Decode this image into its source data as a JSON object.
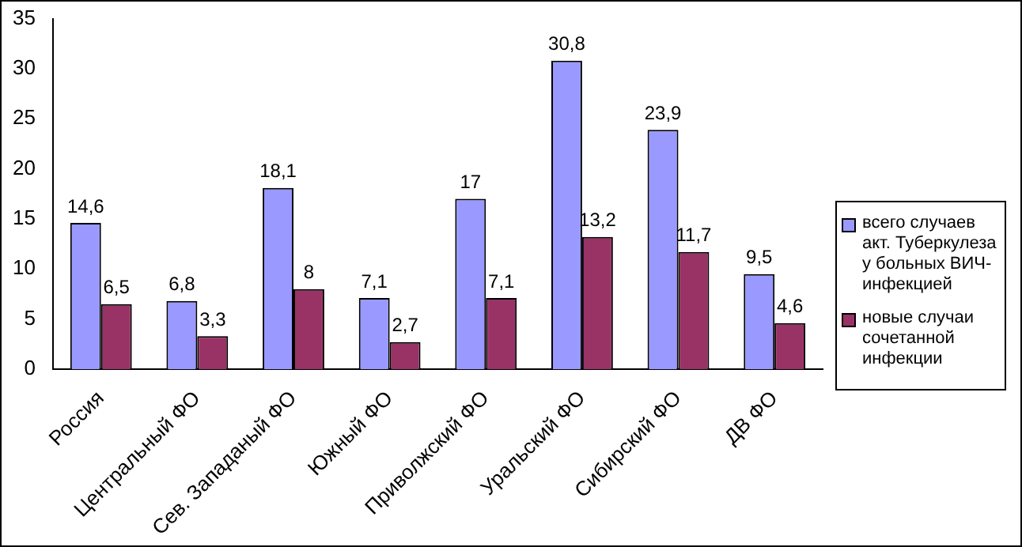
{
  "chart_data": {
    "type": "bar",
    "categories": [
      "Россия",
      "Центральный ФО",
      "Сев. Западаный ФО",
      "Южный ФО",
      "Приволжский ФО",
      "Уральский ФО",
      "Сибирский ФО",
      "ДВ ФО"
    ],
    "series": [
      {
        "name": "всего случаев акт. Туберкулеза у больных ВИЧ-инфекцией",
        "color": "#9999ff",
        "values": [
          14.6,
          6.8,
          18.1,
          7.1,
          17,
          30.8,
          23.9,
          9.5
        ],
        "value_labels": [
          "14,6",
          "6,8",
          "18,1",
          "7,1",
          "17",
          "30,8",
          "23,9",
          "9,5"
        ]
      },
      {
        "name": "новые случаи сочетанной инфекции",
        "color": "#993366",
        "values": [
          6.5,
          3.3,
          8,
          2.7,
          7.1,
          13.2,
          11.7,
          4.6
        ],
        "value_labels": [
          "6,5",
          "3,3",
          "8",
          "2,7",
          "7,1",
          "13,2",
          "11,7",
          "4,6"
        ]
      }
    ],
    "ylim": [
      0,
      35
    ],
    "yticks": [
      0,
      5,
      10,
      15,
      20,
      25,
      30,
      35
    ],
    "grid": false,
    "legend": "right"
  }
}
